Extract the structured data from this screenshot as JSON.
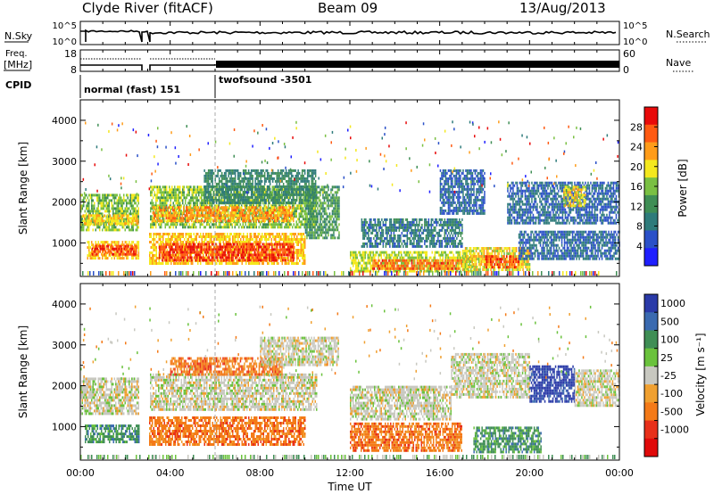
{
  "header": {
    "station": "Clyde River (fitACF)",
    "beam": "Beam 09",
    "date": "13/Aug/2013"
  },
  "panel_labels": {
    "nsky": "N.Sky",
    "nsearch": "N.Search",
    "freq_line1": "Freq.",
    "freq_line2": "[MHz]",
    "nave": "Nave",
    "cpid": "CPID"
  },
  "small_axes": {
    "nsky_ticks": [
      "10^5",
      "10^0"
    ],
    "nsearch_ticks": [
      "10^5",
      "10^0"
    ],
    "freq_ticks": [
      "18",
      "8"
    ],
    "nave_ticks": [
      "60",
      "0"
    ]
  },
  "cpid_modes": [
    {
      "label": "normal (fast) 151",
      "start_hour": 0,
      "end_hour": 6
    },
    {
      "label": "twofsound -3501",
      "start_hour": 6,
      "end_hour": 24
    }
  ],
  "colors": {
    "power": [
      "#1f1fff",
      "#2a50c8",
      "#2e7b7b",
      "#3f8e55",
      "#7ac043",
      "#f4e81e",
      "#ff9c1a",
      "#ff5a12",
      "#e80a0a"
    ],
    "velocity": [
      "#2a3aa8",
      "#3a6ab0",
      "#3f8e55",
      "#6ac23c",
      "#c8c8c0",
      "#f0a030",
      "#f47a18",
      "#e8301a",
      "#e00a0a"
    ]
  },
  "chart_data": [
    {
      "type": "heatmap",
      "name": "power",
      "ylabel": "Slant Range [km]",
      "xlabel": "Time UT",
      "x_ticks": [
        "00:00",
        "04:00",
        "08:00",
        "12:00",
        "16:00",
        "20:00",
        "00:00"
      ],
      "xlim_hours": [
        0,
        24
      ],
      "y_ticks": [
        "1000",
        "2000",
        "3000",
        "4000"
      ],
      "ylim_km": [
        180,
        4500
      ],
      "colorbar_label": "Power [dB]",
      "colorbar_ticks": [
        "4",
        "8",
        "12",
        "16",
        "20",
        "24",
        "28"
      ],
      "color_range": [
        0,
        32
      ],
      "data_gap_hours": [
        [
          2.7,
          3.0
        ]
      ],
      "bands": [
        {
          "t0": 0.0,
          "t1": 2.6,
          "r0": 1300,
          "r1": 2200,
          "v": 16
        },
        {
          "t0": 0.1,
          "t1": 2.6,
          "r0": 1450,
          "r1": 1700,
          "v": 22
        },
        {
          "t0": 0.3,
          "t1": 2.6,
          "r0": 650,
          "r1": 1050,
          "v": 22
        },
        {
          "t0": 0.5,
          "t1": 2.5,
          "r0": 720,
          "r1": 950,
          "v": 29
        },
        {
          "t0": 3.1,
          "t1": 10.5,
          "r0": 1400,
          "r1": 2400,
          "v": 16
        },
        {
          "t0": 3.2,
          "t1": 9.5,
          "r0": 1550,
          "r1": 1900,
          "v": 24
        },
        {
          "t0": 3.0,
          "t1": 10.0,
          "r0": 500,
          "r1": 1250,
          "v": 22
        },
        {
          "t0": 3.5,
          "t1": 9.5,
          "r0": 600,
          "r1": 1000,
          "v": 30
        },
        {
          "t0": 5.5,
          "t1": 10.5,
          "r0": 2000,
          "r1": 2800,
          "v": 10
        },
        {
          "t0": 10.0,
          "t1": 11.5,
          "r0": 1100,
          "r1": 2400,
          "v": 12
        },
        {
          "t0": 12.0,
          "t1": 17.5,
          "r0": 300,
          "r1": 800,
          "v": 18
        },
        {
          "t0": 13.0,
          "t1": 17.0,
          "r0": 380,
          "r1": 600,
          "v": 27
        },
        {
          "t0": 12.5,
          "t1": 17.0,
          "r0": 900,
          "r1": 1600,
          "v": 8
        },
        {
          "t0": 16.0,
          "t1": 18.0,
          "r0": 1700,
          "r1": 2800,
          "v": 6
        },
        {
          "t0": 17.0,
          "t1": 20.0,
          "r0": 350,
          "r1": 900,
          "v": 20
        },
        {
          "t0": 18.0,
          "t1": 19.5,
          "r0": 400,
          "r1": 700,
          "v": 28
        },
        {
          "t0": 19.0,
          "t1": 24.0,
          "r0": 1500,
          "r1": 2500,
          "v": 6
        },
        {
          "t0": 21.5,
          "t1": 22.5,
          "r0": 1900,
          "r1": 2400,
          "v": 20
        },
        {
          "t0": 19.5,
          "t1": 24.0,
          "r0": 600,
          "r1": 1300,
          "v": 6
        }
      ]
    },
    {
      "type": "heatmap",
      "name": "velocity",
      "ylabel": "Slant Range [km]",
      "xlabel": "Time UT",
      "x_ticks": [
        "00:00",
        "04:00",
        "08:00",
        "12:00",
        "16:00",
        "20:00",
        "00:00"
      ],
      "xlim_hours": [
        0,
        24
      ],
      "y_ticks": [
        "1000",
        "2000",
        "3000",
        "4000"
      ],
      "ylim_km": [
        180,
        4500
      ],
      "colorbar_label": "Velocity [m s⁻¹]",
      "colorbar_ticks": [
        "1000",
        "500",
        "100",
        "25",
        "-25",
        "-100",
        "-500",
        "-1000"
      ],
      "data_gap_hours": [
        [
          2.7,
          3.0
        ]
      ],
      "bands": [
        {
          "t0": 0.0,
          "t1": 2.6,
          "r0": 1300,
          "r1": 2200,
          "c": 4
        },
        {
          "t0": 0.2,
          "t1": 2.6,
          "r0": 600,
          "r1": 1050,
          "c": 2
        },
        {
          "t0": 3.1,
          "t1": 10.5,
          "r0": 1400,
          "r1": 2300,
          "c": 4
        },
        {
          "t0": 3.0,
          "t1": 10.0,
          "r0": 550,
          "r1": 1250,
          "c": 6
        },
        {
          "t0": 4.0,
          "t1": 9.0,
          "r0": 2300,
          "r1": 2700,
          "c": 6
        },
        {
          "t0": 8.0,
          "t1": 11.5,
          "r0": 2500,
          "r1": 3200,
          "c": 4
        },
        {
          "t0": 12.0,
          "t1": 17.0,
          "r0": 400,
          "r1": 1100,
          "c": 6
        },
        {
          "t0": 12.0,
          "t1": 16.5,
          "r0": 1200,
          "r1": 2000,
          "c": 4
        },
        {
          "t0": 16.5,
          "t1": 20.0,
          "r0": 1700,
          "r1": 2800,
          "c": 4
        },
        {
          "t0": 17.5,
          "t1": 20.5,
          "r0": 350,
          "r1": 1000,
          "c": 2
        },
        {
          "t0": 20.0,
          "t1": 22.0,
          "r0": 1600,
          "r1": 2500,
          "c": 0
        },
        {
          "t0": 22.0,
          "t1": 24.0,
          "r0": 1500,
          "r1": 2400,
          "c": 4
        }
      ]
    }
  ]
}
